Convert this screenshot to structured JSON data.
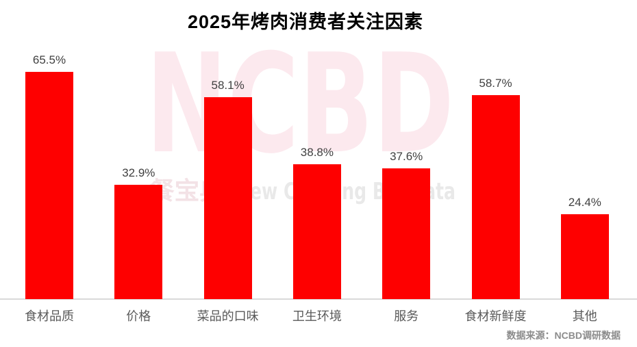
{
  "title": "2025年烤肉消费者关注因素",
  "source_note": "数据来源：NCBD调研数据",
  "watermark": {
    "main": "NCBD",
    "sub_cn": "餐宝典",
    "sub_en": "New Catering Big Data"
  },
  "colors": {
    "bar": "#fe0000",
    "value_label": "#404040",
    "category_label": "#595959",
    "axis_line": "#d9d9d9",
    "source_text": "#8c8c8c",
    "watermark_pink": "#fce9ee",
    "watermark_sub_cn": "#f3e2e6",
    "watermark_sub_en": "#e9e9e9",
    "title_color": "#000000",
    "background": "#ffffff"
  },
  "chart_data": {
    "type": "bar",
    "title": "2025年烤肉消费者关注因素",
    "categories": [
      "食材品质",
      "价格",
      "菜品的口味",
      "卫生环境",
      "服务",
      "食材新鲜度",
      "其他"
    ],
    "values": [
      65.5,
      32.9,
      58.1,
      38.8,
      37.6,
      58.7,
      24.4
    ],
    "value_labels": [
      "65.5%",
      "32.9%",
      "58.1%",
      "38.8%",
      "37.6%",
      "58.7%",
      "24.4%"
    ],
    "unit": "%",
    "xlabel": "",
    "ylabel": "",
    "ylim": [
      0,
      70
    ],
    "bar_color": "#fe0000",
    "grid": false,
    "legend": false,
    "value_label_position": "above-bar",
    "source": "数据来源：NCBD调研数据"
  }
}
